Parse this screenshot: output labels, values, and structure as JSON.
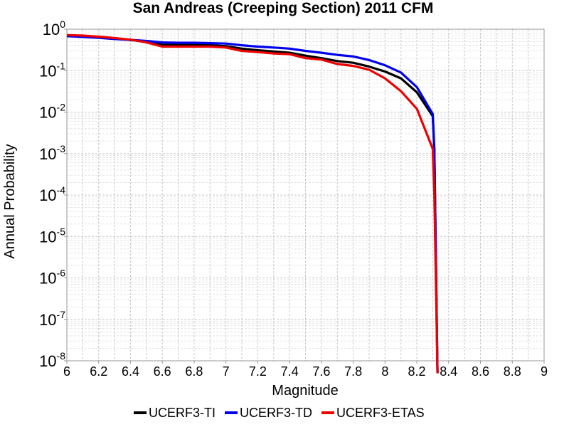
{
  "chart_data": {
    "type": "line",
    "title": "San Andreas (Creeping Section) 2011 CFM",
    "xlabel": "Magnitude",
    "ylabel": "Annual Probability",
    "xlim": [
      6,
      9
    ],
    "ylim": [
      1e-08,
      1
    ],
    "yscale": "log",
    "grid": true,
    "legend_position": "bottom",
    "x_ticks": [
      "6",
      "6.2",
      "6.4",
      "6.6",
      "6.8",
      "7",
      "7.2",
      "7.4",
      "7.6",
      "7.8",
      "8",
      "8.2",
      "8.4",
      "8.6",
      "8.8",
      "9"
    ],
    "y_ticks": [
      {
        "base": "10",
        "exp": "0",
        "value": 1
      },
      {
        "base": "10",
        "exp": "-1",
        "value": 0.1
      },
      {
        "base": "10",
        "exp": "-2",
        "value": 0.01
      },
      {
        "base": "10",
        "exp": "-3",
        "value": 0.001
      },
      {
        "base": "10",
        "exp": "-4",
        "value": 0.0001
      },
      {
        "base": "10",
        "exp": "-5",
        "value": 1e-05
      },
      {
        "base": "10",
        "exp": "-6",
        "value": 1e-06
      },
      {
        "base": "10",
        "exp": "-7",
        "value": 1e-07
      },
      {
        "base": "10",
        "exp": "-8",
        "value": 1e-08
      }
    ],
    "series": [
      {
        "name": "UCERF3-TI",
        "color": "#000000",
        "x": [
          6.0,
          6.1,
          6.2,
          6.3,
          6.4,
          6.5,
          6.6,
          6.7,
          6.8,
          6.9,
          7.0,
          7.1,
          7.2,
          7.3,
          7.4,
          7.5,
          7.6,
          7.7,
          7.8,
          7.9,
          8.0,
          8.1,
          8.2,
          8.3,
          8.31,
          8.33
        ],
        "y": [
          0.7,
          0.68,
          0.64,
          0.6,
          0.55,
          0.5,
          0.42,
          0.42,
          0.42,
          0.41,
          0.39,
          0.34,
          0.31,
          0.29,
          0.27,
          0.23,
          0.2,
          0.17,
          0.155,
          0.125,
          0.095,
          0.065,
          0.03,
          0.008,
          0.0012,
          5e-09
        ]
      },
      {
        "name": "UCERF3-TD",
        "color": "#0000ee",
        "x": [
          6.0,
          6.1,
          6.2,
          6.3,
          6.4,
          6.5,
          6.6,
          6.7,
          6.8,
          6.9,
          7.0,
          7.1,
          7.2,
          7.3,
          7.4,
          7.5,
          7.6,
          7.7,
          7.8,
          7.9,
          8.0,
          8.1,
          8.2,
          8.3,
          8.31,
          8.33
        ],
        "y": [
          0.68,
          0.65,
          0.62,
          0.58,
          0.55,
          0.52,
          0.48,
          0.47,
          0.47,
          0.46,
          0.45,
          0.41,
          0.38,
          0.36,
          0.34,
          0.3,
          0.27,
          0.24,
          0.22,
          0.18,
          0.135,
          0.09,
          0.04,
          0.009,
          0.0012,
          5e-09
        ]
      },
      {
        "name": "UCERF3-ETAS",
        "color": "#ee0000",
        "x": [
          6.0,
          6.1,
          6.2,
          6.3,
          6.4,
          6.5,
          6.6,
          6.7,
          6.8,
          6.9,
          7.0,
          7.1,
          7.2,
          7.3,
          7.4,
          7.5,
          7.6,
          7.7,
          7.8,
          7.9,
          8.0,
          8.1,
          8.2,
          8.3,
          8.31,
          8.33
        ],
        "y": [
          0.72,
          0.7,
          0.66,
          0.61,
          0.56,
          0.48,
          0.38,
          0.38,
          0.38,
          0.38,
          0.36,
          0.3,
          0.28,
          0.26,
          0.25,
          0.2,
          0.185,
          0.145,
          0.13,
          0.105,
          0.065,
          0.032,
          0.012,
          0.0013,
          0.0001,
          5e-09
        ]
      }
    ]
  }
}
